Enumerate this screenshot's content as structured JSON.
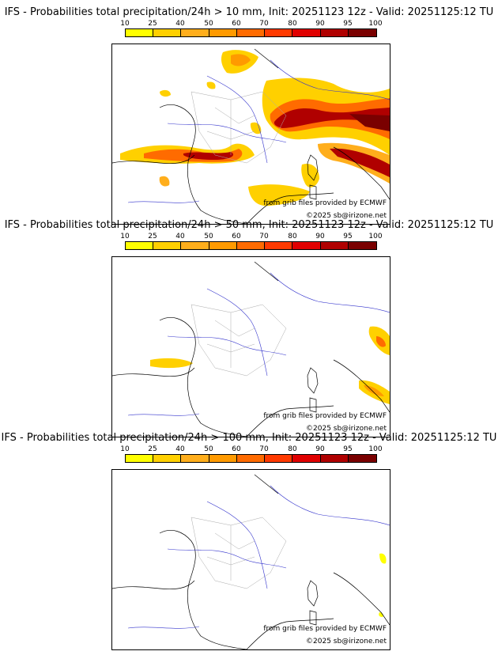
{
  "colorbar": {
    "ticks": [
      "10",
      "25",
      "40",
      "50",
      "60",
      "70",
      "80",
      "90",
      "95",
      "100"
    ],
    "colors": [
      "#ffff00",
      "#ffd000",
      "#ffae1c",
      "#ff9a00",
      "#ff6b00",
      "#ff3a00",
      "#e00000",
      "#b00000",
      "#7a0000"
    ]
  },
  "panels": [
    {
      "title": "IFS - Probabilities total precipitation/24h > 10 mm, Init: 20251123 12z - Valid: 20251125:12 TU",
      "threshold_mm": 10,
      "source_credit": "from grib files provided by ECMWF",
      "copyright": "©2025 sb@irizone.net"
    },
    {
      "title": "IFS - Probabilities total precipitation/24h > 50 mm, Init: 20251123 12z - Valid: 20251125:12 TU",
      "threshold_mm": 50,
      "source_credit": "from grib files provided by ECMWF",
      "copyright": "©2025 sb@irizone.net"
    },
    {
      "title": "IFS - Probabilities total precipitation/24h > 100 mm, Init: 20251123 12z - Valid: 20251125:12 TU",
      "threshold_mm": 100,
      "source_credit": "from grib files provided by ECMWF",
      "copyright": "©2025 sb@irizone.net"
    }
  ]
}
